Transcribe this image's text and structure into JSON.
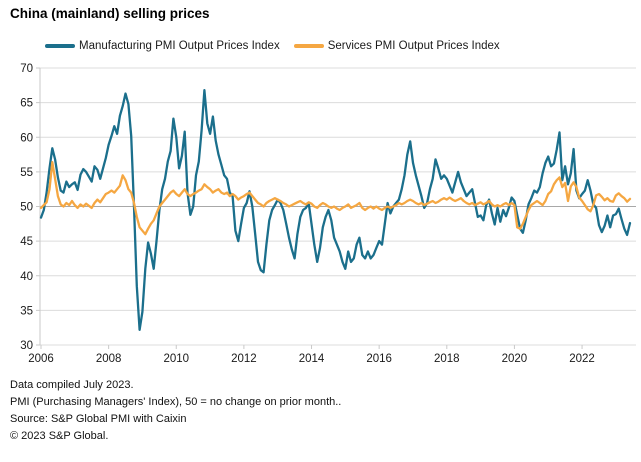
{
  "title": "China (mainland) selling prices",
  "legend": {
    "manufacturing_label": "Manufacturing PMI Output Prices Index",
    "services_label": "Services PMI Output Prices Index"
  },
  "footer": {
    "line1": "Data compiled July 2023.",
    "line2": "PMI (Purchasing Managers' Index), 50 = no change on prior month..",
    "line3": "Source: S&P Global PMI with Caixin",
    "line4": "© 2023 S&P Global."
  },
  "colors": {
    "manufacturing": "#1b6f8c",
    "services": "#f5a742",
    "gridline": "#dcdcdc",
    "baseline_50": "#a8a8a8",
    "axis": "#c9c9c9",
    "text": "#1a1a1a"
  },
  "chart_data": {
    "type": "line",
    "title": "China (mainland) selling prices",
    "xlabel": "",
    "ylabel": "",
    "ylim": [
      30,
      70
    ],
    "yticks": [
      30,
      35,
      40,
      45,
      50,
      55,
      60,
      65,
      70
    ],
    "xticks": [
      "2006",
      "2008",
      "2010",
      "2012",
      "2014",
      "2016",
      "2018",
      "2020",
      "2022"
    ],
    "x_start": "2006-01",
    "x_end": "2023-06",
    "frequency": "monthly",
    "baseline": 50,
    "grid": "horizontal",
    "legend_position": "top",
    "series": [
      {
        "name": "Manufacturing PMI Output Prices Index",
        "color": "#1b6f8c",
        "values": [
          48.4,
          49.5,
          52.0,
          55.5,
          58.4,
          56.8,
          54.2,
          52.3,
          52.0,
          53.6,
          52.8,
          53.2,
          53.5,
          52.4,
          54.6,
          55.4,
          55.0,
          54.3,
          53.6,
          55.8,
          55.3,
          54.0,
          55.5,
          57.0,
          58.9,
          60.2,
          61.6,
          60.5,
          63.1,
          64.5,
          66.3,
          64.8,
          60.2,
          50.0,
          38.5,
          32.2,
          34.8,
          41.0,
          44.8,
          43.2,
          41.0,
          45.0,
          49.5,
          52.5,
          54.0,
          56.5,
          58.0,
          62.7,
          60.0,
          55.5,
          57.3,
          60.8,
          52.0,
          48.8,
          50.0,
          54.5,
          56.5,
          61.0,
          66.8,
          62.0,
          60.5,
          63.0,
          59.5,
          57.5,
          56.0,
          54.5,
          54.0,
          52.0,
          51.5,
          46.5,
          45.0,
          47.5,
          49.8,
          50.5,
          52.2,
          50.0,
          46.0,
          42.0,
          40.8,
          40.5,
          44.5,
          48.0,
          49.5,
          50.2,
          51.0,
          50.5,
          49.5,
          47.5,
          45.5,
          43.8,
          42.5,
          46.0,
          48.5,
          49.5,
          49.8,
          50.5,
          47.5,
          44.5,
          42.0,
          44.0,
          47.0,
          48.5,
          49.5,
          48.0,
          45.5,
          44.5,
          43.5,
          42.0,
          41.0,
          43.5,
          42.0,
          42.5,
          44.5,
          45.5,
          43.0,
          42.5,
          43.5,
          42.5,
          43.0,
          44.0,
          45.0,
          44.5,
          47.5,
          50.5,
          49.0,
          50.0,
          50.5,
          51.0,
          52.5,
          54.5,
          57.5,
          59.4,
          56.3,
          54.5,
          53.0,
          51.5,
          49.8,
          50.5,
          52.5,
          54.0,
          56.8,
          55.5,
          54.0,
          54.5,
          54.0,
          53.0,
          52.0,
          53.5,
          55.0,
          53.5,
          52.5,
          51.5,
          52.0,
          52.5,
          50.5,
          48.5,
          48.7,
          48.0,
          50.2,
          51.0,
          49.0,
          47.4,
          49.8,
          47.8,
          49.5,
          48.6,
          49.8,
          51.3,
          50.8,
          48.8,
          46.8,
          46.2,
          48.0,
          50.3,
          51.2,
          52.3,
          52.0,
          52.8,
          54.8,
          56.3,
          57.2,
          55.8,
          56.2,
          58.2,
          60.7,
          53.8,
          55.8,
          53.2,
          54.8,
          58.3,
          52.3,
          51.2,
          51.8,
          52.3,
          53.8,
          52.3,
          50.3,
          49.8,
          47.3,
          46.3,
          47.2,
          48.7,
          47.0,
          48.7,
          48.9,
          49.7,
          48.2,
          46.8,
          45.9,
          47.6
        ]
      },
      {
        "name": "Services PMI Output Prices Index",
        "color": "#f5a742",
        "values": [
          49.8,
          50.2,
          50.6,
          52.5,
          56.4,
          54.0,
          51.5,
          50.3,
          50.0,
          50.5,
          50.2,
          50.8,
          50.2,
          49.8,
          50.3,
          50.0,
          50.4,
          50.1,
          49.8,
          50.5,
          51.0,
          50.6,
          51.2,
          51.8,
          52.0,
          52.3,
          52.0,
          52.5,
          53.0,
          54.5,
          53.8,
          52.5,
          52.0,
          50.5,
          48.5,
          47.0,
          46.5,
          46.0,
          46.8,
          47.5,
          48.0,
          49.0,
          50.0,
          50.5,
          51.0,
          51.5,
          52.0,
          52.3,
          51.8,
          51.5,
          52.0,
          52.5,
          51.8,
          51.5,
          51.8,
          52.0,
          52.3,
          52.5,
          53.2,
          52.8,
          52.5,
          52.0,
          52.3,
          52.5,
          52.0,
          51.8,
          52.0,
          51.5,
          51.8,
          51.5,
          51.0,
          51.3,
          51.5,
          51.8,
          52.0,
          51.5,
          51.0,
          50.5,
          50.3,
          50.0,
          50.5,
          50.8,
          51.0,
          51.2,
          51.0,
          50.8,
          50.5,
          50.3,
          50.0,
          50.2,
          50.4,
          50.6,
          50.8,
          50.5,
          50.3,
          50.6,
          50.4,
          50.0,
          49.8,
          50.2,
          50.5,
          50.3,
          50.0,
          49.8,
          50.0,
          49.7,
          49.5,
          49.8,
          50.0,
          50.3,
          49.8,
          50.0,
          50.2,
          50.5,
          49.8,
          49.5,
          49.8,
          50.0,
          49.7,
          50.0,
          49.7,
          49.5,
          49.8,
          50.0,
          49.8,
          50.0,
          50.2,
          50.5,
          50.3,
          50.5,
          50.8,
          51.0,
          50.8,
          50.5,
          50.3,
          50.5,
          50.2,
          50.4,
          50.6,
          50.8,
          50.5,
          50.7,
          51.0,
          51.2,
          51.0,
          51.3,
          51.0,
          50.8,
          51.0,
          51.2,
          50.8,
          50.5,
          50.3,
          50.5,
          50.2,
          50.4,
          50.6,
          50.3,
          50.5,
          50.8,
          50.3,
          50.0,
          50.2,
          50.0,
          50.3,
          50.5,
          50.2,
          50.5,
          50.2,
          47.0,
          46.8,
          47.5,
          48.5,
          49.5,
          50.2,
          50.5,
          50.8,
          50.5,
          50.2,
          50.8,
          51.8,
          52.2,
          53.2,
          53.8,
          54.2,
          52.8,
          53.4,
          50.8,
          52.9,
          53.5,
          52.8,
          51.3,
          50.8,
          50.2,
          49.6,
          49.3,
          50.2,
          51.6,
          51.8,
          51.4,
          50.9,
          51.2,
          50.8,
          50.7,
          51.6,
          51.9,
          51.5,
          51.2,
          50.7,
          51.1
        ]
      }
    ]
  }
}
